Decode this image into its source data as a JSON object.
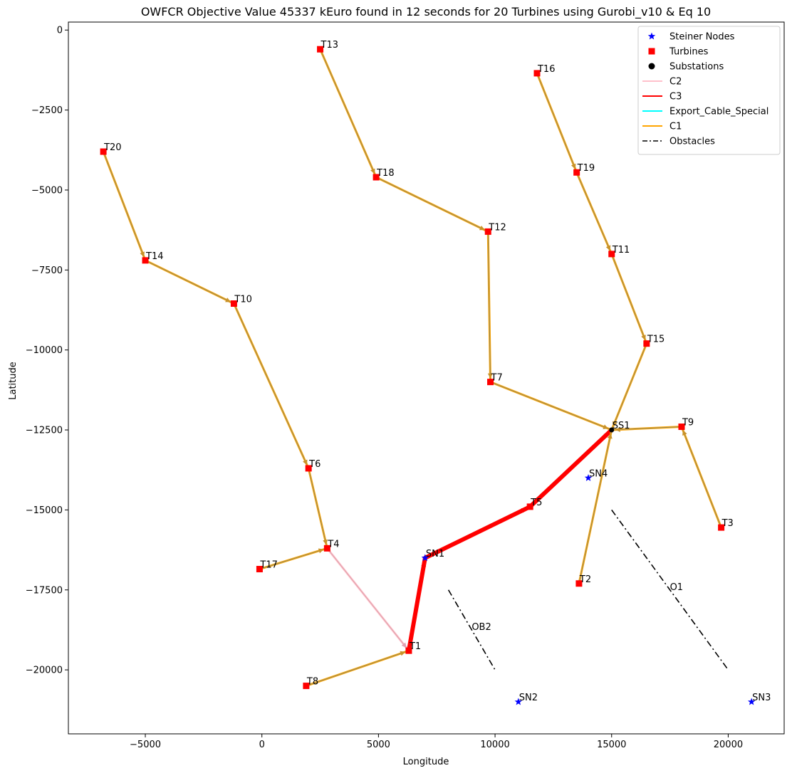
{
  "chart_data": {
    "type": "scatter",
    "title": "OWFCR Objective Value 45337 kEuro found in 12 seconds for 20 Turbines using Gurobi_v10 & Eq 10",
    "xlabel": "Longitude",
    "ylabel": "Latitude",
    "xlim": [
      -8300,
      22400
    ],
    "ylim": [
      -22000,
      250
    ],
    "xticks": [
      -5000,
      0,
      5000,
      10000,
      15000,
      20000
    ],
    "yticks": [
      0,
      -2500,
      -5000,
      -7500,
      -10000,
      -12500,
      -15000,
      -17500,
      -20000
    ],
    "colors": {
      "steiner": "#0000ff",
      "turbine": "#ff0000",
      "substation": "#000000",
      "C1": "#ffa500",
      "C2": "#ffc0cb",
      "C3": "#ff0000",
      "export": "#00ffff",
      "obstacle": "#000000"
    },
    "legend": {
      "placement": "top-right",
      "entries": [
        {
          "label": "Steiner Nodes",
          "kind": "star",
          "color": "#0000ff"
        },
        {
          "label": "Turbines",
          "kind": "square",
          "color": "#ff0000"
        },
        {
          "label": "Substations",
          "kind": "circle",
          "color": "#000000"
        },
        {
          "label": "C2",
          "kind": "line",
          "color": "#ffc0cb"
        },
        {
          "label": "C3",
          "kind": "line",
          "color": "#ff0000"
        },
        {
          "label": "Export_Cable_Special",
          "kind": "line",
          "color": "#00ffff"
        },
        {
          "label": "C1",
          "kind": "line",
          "color": "#ffa500"
        },
        {
          "label": "Obstacles",
          "kind": "dashdot",
          "color": "#000000"
        }
      ]
    },
    "turbines": [
      {
        "name": "T1",
        "x": 6300,
        "y": -19400
      },
      {
        "name": "T2",
        "x": 13600,
        "y": -17300
      },
      {
        "name": "T3",
        "x": 19700,
        "y": -15550
      },
      {
        "name": "T4",
        "x": 2800,
        "y": -16200
      },
      {
        "name": "T5",
        "x": 11500,
        "y": -14900
      },
      {
        "name": "T6",
        "x": 2000,
        "y": -13700
      },
      {
        "name": "T7",
        "x": 9800,
        "y": -11000
      },
      {
        "name": "T8",
        "x": 1900,
        "y": -20500
      },
      {
        "name": "T9",
        "x": 18000,
        "y": -12400
      },
      {
        "name": "T10",
        "x": -1200,
        "y": -8550
      },
      {
        "name": "T11",
        "x": 15000,
        "y": -7000
      },
      {
        "name": "T12",
        "x": 9700,
        "y": -6300
      },
      {
        "name": "T13",
        "x": 2500,
        "y": -600
      },
      {
        "name": "T14",
        "x": -5000,
        "y": -7200
      },
      {
        "name": "T15",
        "x": 16500,
        "y": -9800
      },
      {
        "name": "T16",
        "x": 11800,
        "y": -1350
      },
      {
        "name": "T17",
        "x": -100,
        "y": -16850
      },
      {
        "name": "T18",
        "x": 4900,
        "y": -4600
      },
      {
        "name": "T19",
        "x": 13500,
        "y": -4450
      },
      {
        "name": "T20",
        "x": -6800,
        "y": -3800
      }
    ],
    "substations": [
      {
        "name": "SS1",
        "x": 15000,
        "y": -12500
      }
    ],
    "steiner_nodes": [
      {
        "name": "SN1",
        "x": 7000,
        "y": -16500
      },
      {
        "name": "SN2",
        "x": 11000,
        "y": -21000
      },
      {
        "name": "SN3",
        "x": 21000,
        "y": -21000
      },
      {
        "name": "SN4",
        "x": 14000,
        "y": -14000
      }
    ],
    "cables": [
      {
        "type": "C1",
        "from": "T20",
        "to": "T14"
      },
      {
        "type": "C1",
        "from": "T14",
        "to": "T10"
      },
      {
        "type": "C1",
        "from": "T10",
        "to": "T6"
      },
      {
        "type": "C1",
        "from": "T6",
        "to": "T4"
      },
      {
        "type": "C1",
        "from": "T17",
        "to": "T4"
      },
      {
        "type": "C2",
        "from": "T4",
        "to": "T1"
      },
      {
        "type": "C1",
        "from": "T8",
        "to": "T1"
      },
      {
        "type": "C3",
        "from": "T1",
        "to": "SN1"
      },
      {
        "type": "C3",
        "from": "SN1",
        "to": "T5"
      },
      {
        "type": "C3",
        "from": "T5",
        "to": "SS1"
      },
      {
        "type": "C1",
        "from": "T13",
        "to": "T18"
      },
      {
        "type": "C1",
        "from": "T18",
        "to": "T12"
      },
      {
        "type": "C1",
        "from": "T12",
        "to": "T7"
      },
      {
        "type": "C1",
        "from": "T7",
        "to": "SS1"
      },
      {
        "type": "C1",
        "from": "T16",
        "to": "T19"
      },
      {
        "type": "C1",
        "from": "T19",
        "to": "T11"
      },
      {
        "type": "C1",
        "from": "T11",
        "to": "T15"
      },
      {
        "type": "C1",
        "from": "T15",
        "to": "SS1"
      },
      {
        "type": "C1",
        "from": "T9",
        "to": "SS1"
      },
      {
        "type": "C1",
        "from": "T3",
        "to": "T9"
      },
      {
        "type": "C1",
        "from": "T2",
        "to": "SS1"
      }
    ],
    "obstacles": [
      {
        "name": "O1",
        "points": [
          [
            15000,
            -15000
          ],
          [
            20000,
            -20000
          ]
        ],
        "label_at": [
          17500,
          -17500
        ]
      },
      {
        "name": "OB2",
        "points": [
          [
            8000,
            -17500
          ],
          [
            10000,
            -20000
          ]
        ],
        "label_at": [
          9000,
          -18750
        ]
      }
    ]
  }
}
